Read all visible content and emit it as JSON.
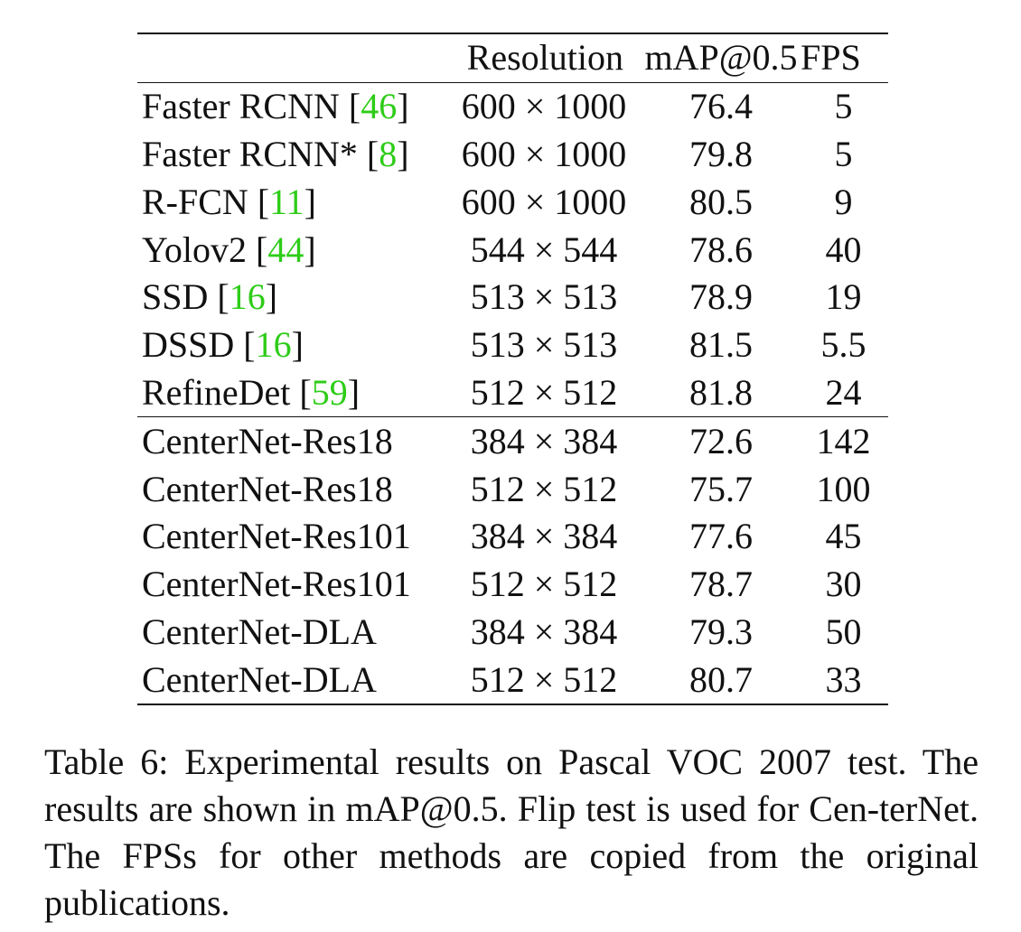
{
  "table": {
    "headers": {
      "method": "",
      "resolution": "Resolution",
      "map": "mAP@0.5",
      "fps": "FPS"
    },
    "baseline_rows": [
      {
        "method": "Faster RCNN",
        "ref": "46",
        "resolution": "600 × 1000",
        "map": "76.4",
        "fps": "5"
      },
      {
        "method": "Faster RCNN*",
        "ref": "8",
        "resolution": "600 × 1000",
        "map": "79.8",
        "fps": "5"
      },
      {
        "method": "R-FCN",
        "ref": "11",
        "resolution": "600 × 1000",
        "map": "80.5",
        "fps": "9"
      },
      {
        "method": "Yolov2",
        "ref": "44",
        "resolution": "544 × 544",
        "map": "78.6",
        "fps": "40"
      },
      {
        "method": "SSD",
        "ref": "16",
        "resolution": "513 × 513",
        "map": "78.9",
        "fps": "19"
      },
      {
        "method": "DSSD",
        "ref": "16",
        "resolution": "513 × 513",
        "map": "81.5",
        "fps": "5.5"
      },
      {
        "method": "RefineDet",
        "ref": "59",
        "resolution": "512 × 512",
        "map": "81.8",
        "fps": "24"
      }
    ],
    "centernet_rows": [
      {
        "method": "CenterNet-Res18",
        "resolution": "384 × 384",
        "map": "72.6",
        "fps": "142"
      },
      {
        "method": "CenterNet-Res18",
        "resolution": "512 × 512",
        "map": "75.7",
        "fps": "100"
      },
      {
        "method": "CenterNet-Res101",
        "resolution": "384 × 384",
        "map": "77.6",
        "fps": "45"
      },
      {
        "method": "CenterNet-Res101",
        "resolution": "512 × 512",
        "map": "78.7",
        "fps": "30"
      },
      {
        "method": "CenterNet-DLA",
        "resolution": "384 × 384",
        "map": "79.3",
        "fps": "50"
      },
      {
        "method": "CenterNet-DLA",
        "resolution": "512 × 512",
        "map": "80.7",
        "fps": "33"
      }
    ]
  },
  "caption": {
    "lines": [
      "Table 6: Experimental results on Pascal VOC 2007 test. The",
      "results are shown in mAP@0.5. Flip test is used for Cen-",
      "terNet. The FPSs for other methods are copied from the",
      "original publications."
    ]
  },
  "colors": {
    "citation": "#2ecc18",
    "text": "#111111"
  }
}
